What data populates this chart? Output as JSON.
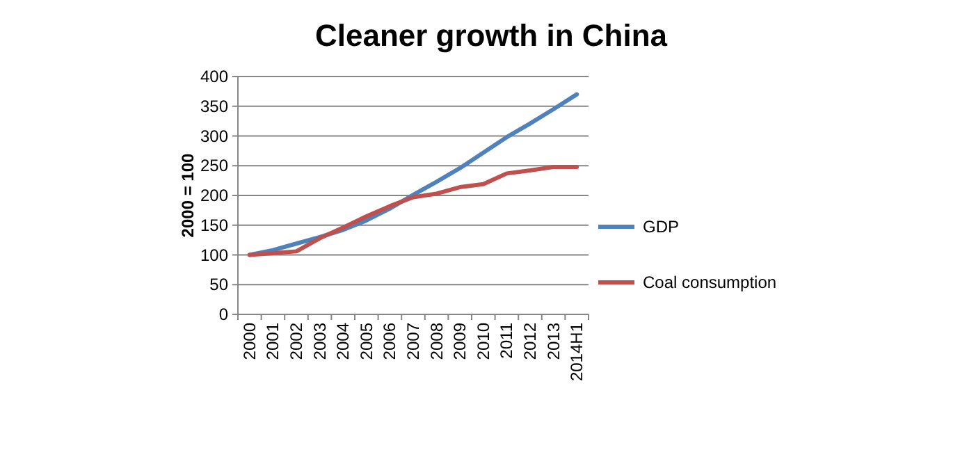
{
  "chart_data": {
    "type": "line",
    "title": "Cleaner growth in China",
    "ylabel": "2000 = 100",
    "categories": [
      "2000",
      "2001",
      "2002",
      "2003",
      "2004",
      "2005",
      "2006",
      "2007",
      "2008",
      "2009",
      "2010",
      "2011",
      "2012",
      "2013",
      "2014H1"
    ],
    "series": [
      {
        "name": "GDP",
        "color": "#4f81bd",
        "values": [
          100,
          108,
          119,
          130,
          142,
          158,
          178,
          201,
          223,
          246,
          272,
          298,
          321,
          345,
          370
        ]
      },
      {
        "name": "Coal consumption",
        "color": "#c0504d",
        "values": [
          100,
          103,
          106,
          128,
          146,
          165,
          182,
          197,
          203,
          214,
          219,
          237,
          242,
          248,
          248
        ]
      }
    ],
    "ylim": [
      0,
      400
    ],
    "yticks": [
      0,
      50,
      100,
      150,
      200,
      250,
      300,
      350,
      400
    ],
    "grid": "y",
    "legend": "right",
    "marker": "none",
    "line_style": "solid"
  }
}
